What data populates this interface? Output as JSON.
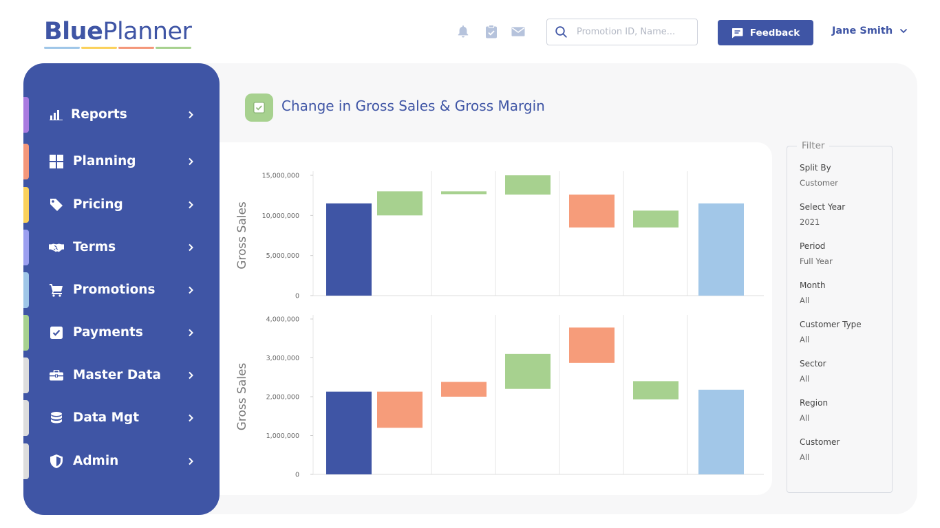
{
  "brand": {
    "name_bold": "Blue",
    "name_regular": "Planner",
    "stripe_colors": [
      "#9fc6e8",
      "#fbd15b",
      "#f4977a",
      "#a7d18f"
    ]
  },
  "header": {
    "icons": [
      "bell-icon",
      "clipboard-check-icon",
      "mail-icon"
    ],
    "search_placeholder": "Promotion ID, Name...",
    "feedback_label": "Feedback",
    "user_name": "Jane Smith"
  },
  "colors": {
    "primary": "#3f55a5",
    "green": "#a7d18f",
    "orange": "#f69c7a",
    "light_blue": "#a2c7e8"
  },
  "sidebar": {
    "items": [
      {
        "label": "Reports",
        "icon": "bar-chart-icon",
        "tab_color": "#a97be0"
      },
      {
        "label": "Planning",
        "icon": "grid-icon",
        "tab_color": "#f4977a"
      },
      {
        "label": "Pricing",
        "icon": "tag-icon",
        "tab_color": "#fbd15b"
      },
      {
        "label": "Terms",
        "icon": "handshake-icon",
        "tab_color": "#9b9ff0"
      },
      {
        "label": "Promotions",
        "icon": "cart-icon",
        "tab_color": "#9fc6e8"
      },
      {
        "label": "Payments",
        "icon": "checkbox-icon",
        "tab_color": "#a7d18f"
      },
      {
        "label": "Master Data",
        "icon": "briefcase-icon",
        "tab_color": "#dddddd"
      },
      {
        "label": "Data Mgt",
        "icon": "database-icon",
        "tab_color": "#dddddd"
      },
      {
        "label": "Admin",
        "icon": "shield-icon",
        "tab_color": "#dddddd"
      }
    ]
  },
  "page": {
    "title": "Change in Gross Sales & Gross Margin"
  },
  "chart_data": [
    {
      "type": "bar",
      "subtype": "waterfall",
      "ylabel": "Gross Sales",
      "ylim": [
        0,
        15000000
      ],
      "yticks": [
        "0",
        "5,000,000",
        "10,000,000",
        "15,000,000"
      ],
      "bars": [
        {
          "start": 0,
          "end": 11500000,
          "color": "#3f55a5"
        },
        {
          "start": 10000000,
          "end": 13000000,
          "color": "#a7d18f"
        },
        {
          "start": 12650000,
          "end": 13000000,
          "color": "#a7d18f"
        },
        {
          "start": 12600000,
          "end": 15000000,
          "color": "#a7d18f"
        },
        {
          "start": 8500000,
          "end": 12600000,
          "color": "#f69c7a"
        },
        {
          "start": 8500000,
          "end": 10600000,
          "color": "#a7d18f"
        },
        {
          "start": 0,
          "end": 11500000,
          "color": "#a2c7e8"
        }
      ]
    },
    {
      "type": "bar",
      "subtype": "waterfall",
      "ylabel": "Gross Sales",
      "ylim": [
        0,
        4000000
      ],
      "yticks": [
        "0",
        "1,000,000",
        "2,000,000",
        "3,000,000",
        "4,000,000"
      ],
      "bars": [
        {
          "start": 0,
          "end": 2130000,
          "color": "#3f55a5"
        },
        {
          "start": 1200000,
          "end": 2130000,
          "color": "#f69c7a"
        },
        {
          "start": 2000000,
          "end": 2380000,
          "color": "#f69c7a"
        },
        {
          "start": 2200000,
          "end": 3100000,
          "color": "#a7d18f"
        },
        {
          "start": 2870000,
          "end": 3780000,
          "color": "#f69c7a"
        },
        {
          "start": 1930000,
          "end": 2400000,
          "color": "#a7d18f"
        },
        {
          "start": 0,
          "end": 2180000,
          "color": "#a2c7e8"
        }
      ]
    }
  ],
  "filter": {
    "title": "Filter",
    "fields": [
      {
        "label": "Split By",
        "value": "Customer"
      },
      {
        "label": "Select Year",
        "value": "2021"
      },
      {
        "label": "Period",
        "value": "Full Year"
      },
      {
        "label": "Month",
        "value": "All"
      },
      {
        "label": "Customer Type",
        "value": "All"
      },
      {
        "label": "Sector",
        "value": "All"
      },
      {
        "label": "Region",
        "value": "All"
      },
      {
        "label": "Customer",
        "value": "All"
      }
    ]
  }
}
